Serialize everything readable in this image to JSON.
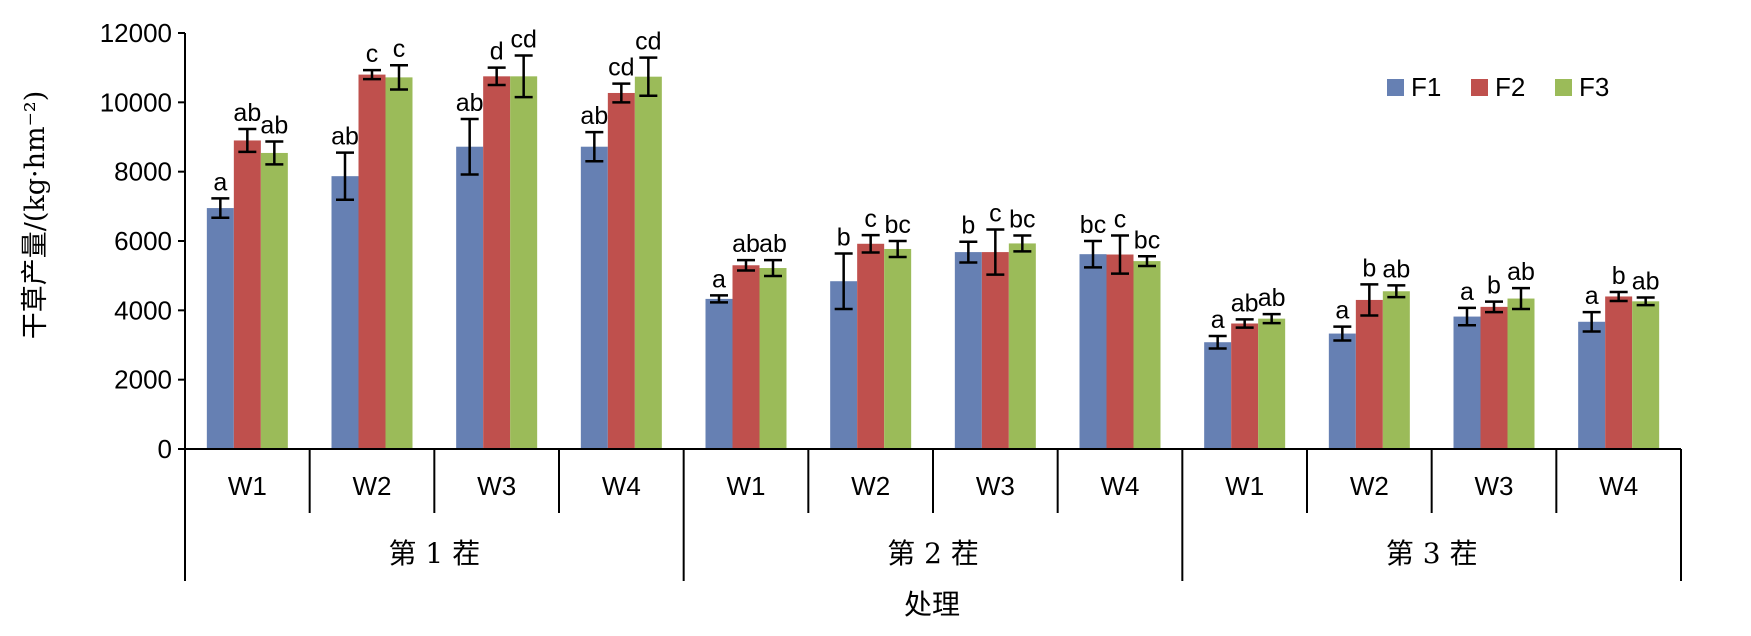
{
  "chart_data": {
    "type": "bar",
    "ylabel": "干草产量/(kg·hm⁻²)",
    "xlabel": "处理",
    "ylim": [
      0,
      12000
    ],
    "yticks": [
      0,
      2000,
      4000,
      6000,
      8000,
      10000,
      12000
    ],
    "grid": false,
    "legend_position": "top-right",
    "groups": [
      "第 1 茬",
      "第 2 茬",
      "第 3 茬"
    ],
    "categories": [
      "W1",
      "W2",
      "W3",
      "W4"
    ],
    "series": [
      {
        "name": "F1",
        "color": "#6680B3",
        "values": [
          [
            6950,
            7870,
            8720,
            8720
          ],
          [
            4330,
            4840,
            5680,
            5620
          ],
          [
            3080,
            3330,
            3820,
            3670
          ]
        ],
        "errors": [
          [
            280,
            680,
            800,
            420
          ],
          [
            100,
            800,
            300,
            380
          ],
          [
            180,
            200,
            250,
            280
          ]
        ],
        "labels": [
          [
            "a",
            "ab",
            "ab",
            "ab"
          ],
          [
            "a",
            "b",
            "b",
            "bc"
          ],
          [
            "a",
            "a",
            "a",
            "a"
          ]
        ]
      },
      {
        "name": "F2",
        "color": "#BF504D",
        "values": [
          [
            8900,
            10800,
            10750,
            10270
          ],
          [
            5300,
            5920,
            5680,
            5610
          ],
          [
            3620,
            4300,
            4100,
            4400
          ]
        ],
        "errors": [
          [
            330,
            130,
            250,
            270
          ],
          [
            150,
            250,
            650,
            550
          ],
          [
            120,
            450,
            150,
            130
          ]
        ],
        "labels": [
          [
            "ab",
            "c",
            "d",
            "cd"
          ],
          [
            "ab",
            "c",
            "c",
            "c"
          ],
          [
            "ab",
            "b",
            "b",
            "b"
          ]
        ]
      },
      {
        "name": "F3",
        "color": "#9BBB59",
        "values": [
          [
            8540,
            10720,
            10750,
            10740
          ],
          [
            5220,
            5770,
            5930,
            5420
          ],
          [
            3760,
            4550,
            4340,
            4260
          ]
        ],
        "errors": [
          [
            330,
            350,
            600,
            550
          ],
          [
            230,
            230,
            230,
            140
          ],
          [
            130,
            170,
            300,
            110
          ]
        ],
        "labels": [
          [
            "ab",
            "c",
            "cd",
            "cd"
          ],
          [
            "ab",
            "bc",
            "bc",
            "bc"
          ],
          [
            "ab",
            "ab",
            "ab",
            "ab"
          ]
        ]
      }
    ]
  }
}
